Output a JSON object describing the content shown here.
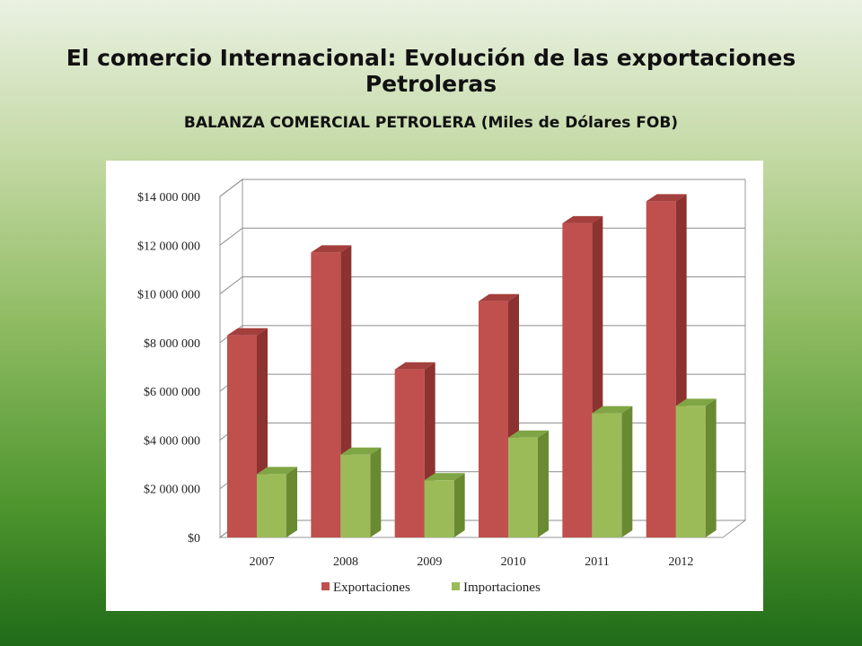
{
  "slide": {
    "title": "El comercio Internacional: Evolución de las exportaciones Petroleras"
  },
  "chart_data": {
    "type": "bar",
    "title": "BALANZA COMERCIAL PETROLERA (Miles de Dólares FOB)",
    "categories": [
      "2007",
      "2008",
      "2009",
      "2010",
      "2011",
      "2012"
    ],
    "series": [
      {
        "name": "Exportaciones",
        "values": [
          8300000,
          11700000,
          6900000,
          9700000,
          12900000,
          13800000
        ],
        "color": "#c0504d",
        "side_color": "#8c3230",
        "top_color": "#a33f3c"
      },
      {
        "name": "Importaciones",
        "values": [
          2600000,
          3400000,
          2350000,
          4100000,
          5100000,
          5400000
        ],
        "color": "#9bbb59",
        "side_color": "#6a8a32",
        "top_color": "#80a545"
      }
    ],
    "ylim": [
      0,
      14000000
    ],
    "yticks": [
      "$0",
      "$2 000 000",
      "$4 000 000",
      "$6 000 000",
      "$8 000 000",
      "$10 000 000",
      "$12 000 000",
      "$14 000 000"
    ],
    "ytick_values": [
      0,
      2000000,
      4000000,
      6000000,
      8000000,
      10000000,
      12000000,
      14000000
    ],
    "grid": true,
    "legend_position": "bottom",
    "xlabel": "",
    "ylabel": ""
  }
}
